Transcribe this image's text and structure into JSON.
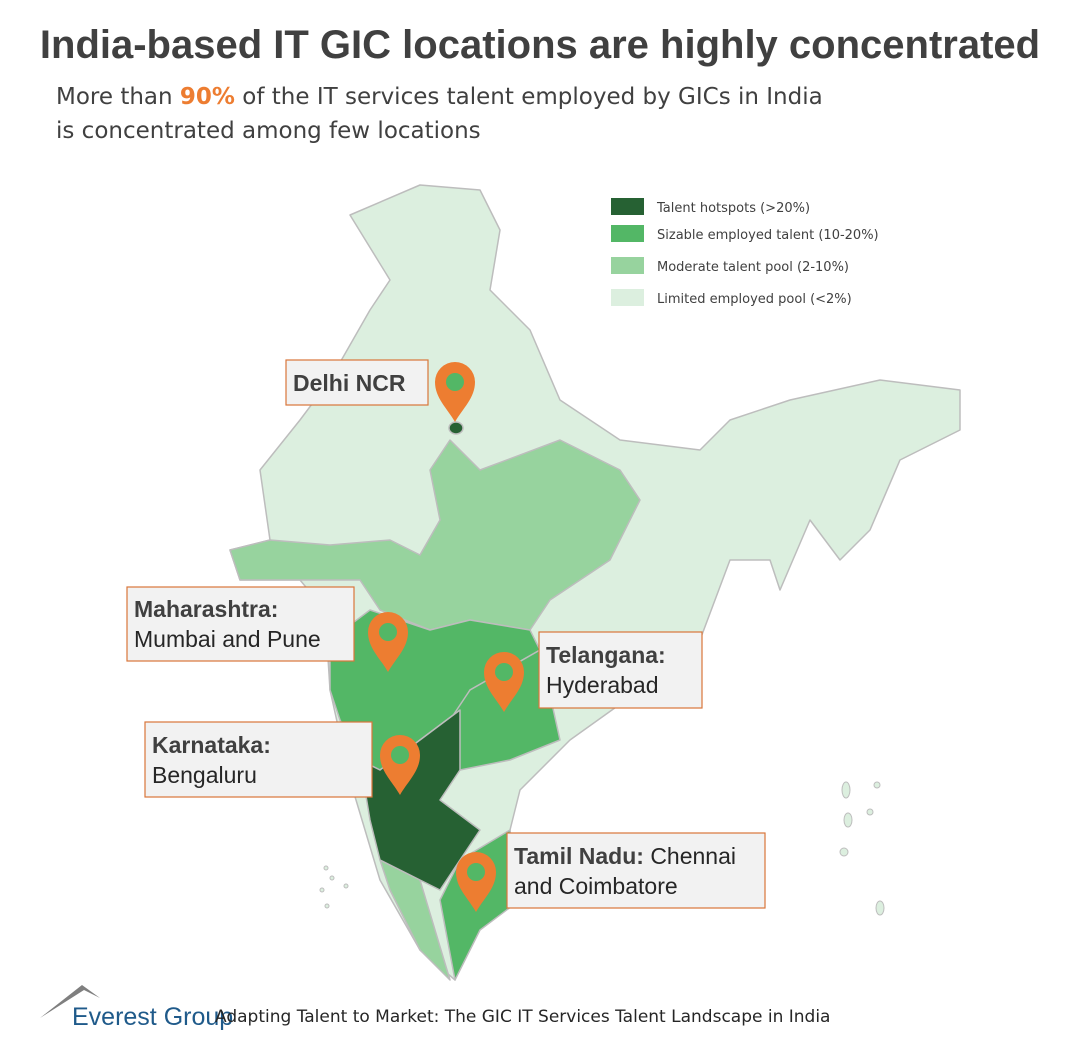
{
  "title": "India-based IT GIC locations are highly concentrated",
  "subtitle": {
    "lead": "More than",
    "highlight": "90%",
    "rest": "of the IT services talent employed by GICs in India",
    "line2": "is concentrated among few locations"
  },
  "legend": [
    {
      "label": "Talent hotspots (>20%)",
      "color": "#266133"
    },
    {
      "label": "Sizable employed talent (10-20%)",
      "color": "#53b766"
    },
    {
      "label": "Moderate talent pool (2-10%)",
      "color": "#97d39e"
    },
    {
      "label": "Limited employed pool (<2%)",
      "color": "#dcefdf"
    }
  ],
  "callouts": [
    {
      "heading": "Delhi NCR"
    },
    {
      "heading": "Maharashtra:",
      "detail": [
        "Mumbai and Pune"
      ]
    },
    {
      "heading": "Telangana:",
      "detail": [
        "Hyderabad"
      ]
    },
    {
      "heading": "Karnataka:",
      "detail": [
        "Bengaluru"
      ]
    },
    {
      "heading": "Tamil Nadu:",
      "detail": [
        "Chennai",
        "and Coimbatore"
      ]
    }
  ],
  "footer": {
    "brand": "Everest Group",
    "text": "Adapting Talent to Market: The GIC IT Services Talent Landscape in India"
  }
}
